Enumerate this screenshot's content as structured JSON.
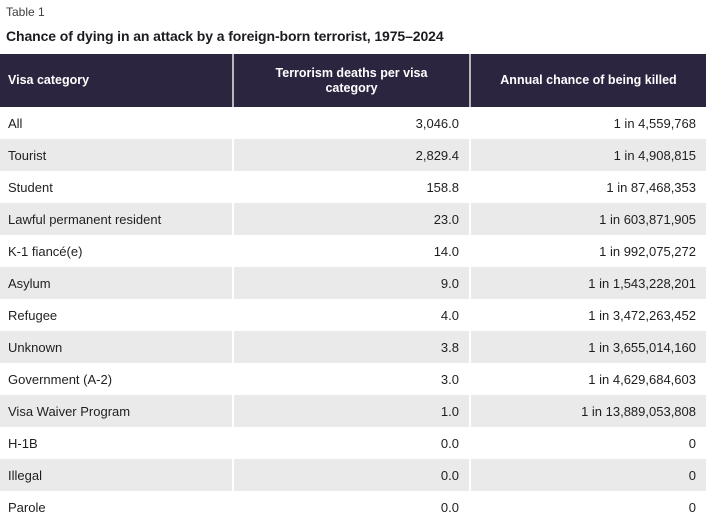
{
  "page": {
    "table_label": "Table 1",
    "title": "Chance of dying in an attack by a foreign-born terrorist, 1975–2024"
  },
  "table": {
    "columns": [
      "Visa category",
      "Terrorism deaths per visa category",
      "Annual chance of being killed"
    ],
    "rows": [
      {
        "visa_category": "All",
        "deaths": "3,046.0",
        "annual_chance": "1 in 4,559,768"
      },
      {
        "visa_category": "Tourist",
        "deaths": "2,829.4",
        "annual_chance": "1 in 4,908,815"
      },
      {
        "visa_category": "Student",
        "deaths": "158.8",
        "annual_chance": "1 in 87,468,353"
      },
      {
        "visa_category": "Lawful permanent resident",
        "deaths": "23.0",
        "annual_chance": "1 in 603,871,905"
      },
      {
        "visa_category": "K-1 fiancé(e)",
        "deaths": "14.0",
        "annual_chance": "1 in 992,075,272"
      },
      {
        "visa_category": "Asylum",
        "deaths": "9.0",
        "annual_chance": "1 in 1,543,228,201"
      },
      {
        "visa_category": "Refugee",
        "deaths": "4.0",
        "annual_chance": "1 in 3,472,263,452"
      },
      {
        "visa_category": "Unknown",
        "deaths": "3.8",
        "annual_chance": "1 in 3,655,014,160"
      },
      {
        "visa_category": "Government (A-2)",
        "deaths": "3.0",
        "annual_chance": "1 in 4,629,684,603"
      },
      {
        "visa_category": "Visa Waiver Program",
        "deaths": "1.0",
        "annual_chance": "1 in 13,889,053,808"
      },
      {
        "visa_category": "H-1B",
        "deaths": "0.0",
        "annual_chance": "0"
      },
      {
        "visa_category": "Illegal",
        "deaths": "0.0",
        "annual_chance": "0"
      },
      {
        "visa_category": "Parole",
        "deaths": "0.0",
        "annual_chance": "0"
      }
    ]
  },
  "colors": {
    "header_bg": "#2b2540",
    "header_text": "#ffffff",
    "header_separator": "#b8b8b8",
    "row_alt_bg": "#eaeaea",
    "body_text": "#1f1f1f"
  },
  "chart_data": {
    "type": "table",
    "title": "Chance of dying in an attack by a foreign-born terrorist, 1975–2024",
    "columns": [
      "Visa category",
      "Terrorism deaths per visa category",
      "Annual chance of being killed"
    ],
    "categories": [
      "All",
      "Tourist",
      "Student",
      "Lawful permanent resident",
      "K-1 fiancé(e)",
      "Asylum",
      "Refugee",
      "Unknown",
      "Government (A-2)",
      "Visa Waiver Program",
      "H-1B",
      "Illegal",
      "Parole"
    ],
    "series": [
      {
        "name": "Terrorism deaths per visa category",
        "values": [
          3046.0,
          2829.4,
          158.8,
          23.0,
          14.0,
          9.0,
          4.0,
          3.8,
          3.0,
          1.0,
          0.0,
          0.0,
          0.0
        ]
      },
      {
        "name": "Annual chance of being killed (1 in N)",
        "values": [
          4559768,
          4908815,
          87468353,
          603871905,
          992075272,
          1543228201,
          3472263452,
          3655014160,
          4629684603,
          13889053808,
          0,
          0,
          0
        ]
      }
    ]
  }
}
